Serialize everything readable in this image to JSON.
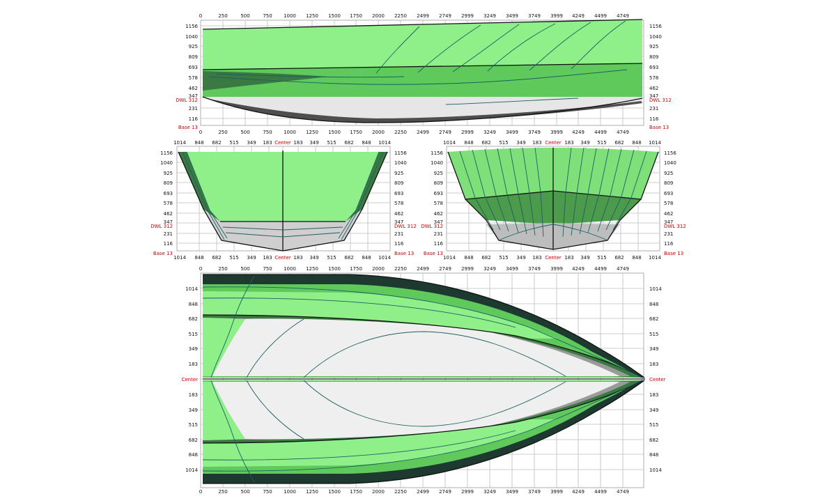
{
  "colors": {
    "hull_light_green": "#8ff08a",
    "hull_mid_green": "#5fc95c",
    "hull_dark_green": "#3a7a42",
    "hull_darkest": "#1e3a30",
    "bottom_light_gray": "#ececec",
    "bottom_mid_gray": "#b4b4b4",
    "bottom_dark_gray": "#6e6e6e",
    "label_red": "#cc0000",
    "grid": "#bdbdbd"
  },
  "labels": {
    "dwl": "DWL 312",
    "base": "Base 13",
    "center": "Center"
  },
  "profile_view": {
    "x_ticks": [
      "0",
      "250",
      "500",
      "750",
      "1000",
      "1250",
      "1500",
      "1750",
      "2000",
      "2250",
      "2499",
      "2749",
      "2999",
      "3249",
      "3499",
      "3749",
      "3999",
      "4249",
      "4499",
      "4749"
    ],
    "y_ticks": [
      "1156",
      "1040",
      "925",
      "809",
      "693",
      "578",
      "462",
      "347",
      "231",
      "116"
    ]
  },
  "body_view_left": {
    "x_ticks": [
      "1014",
      "848",
      "682",
      "515",
      "349",
      "183",
      "Center",
      "183",
      "349",
      "515",
      "682",
      "848",
      "1014"
    ],
    "y_ticks": [
      "1156",
      "1040",
      "925",
      "809",
      "693",
      "578",
      "462",
      "347",
      "231",
      "116"
    ]
  },
  "body_view_right": {
    "x_ticks": [
      "1014",
      "848",
      "682",
      "515",
      "349",
      "183",
      "Center",
      "183",
      "349",
      "515",
      "682",
      "848",
      "1014"
    ],
    "y_ticks": [
      "1156",
      "1040",
      "925",
      "809",
      "693",
      "578",
      "462",
      "347",
      "231",
      "116"
    ]
  },
  "plan_view": {
    "x_ticks": [
      "0",
      "250",
      "500",
      "750",
      "1000",
      "1250",
      "1500",
      "1750",
      "2000",
      "2250",
      "2499",
      "2749",
      "2999",
      "3249",
      "3499",
      "3749",
      "3999",
      "4249",
      "4499",
      "4749"
    ],
    "y_ticks": [
      "1014",
      "848",
      "682",
      "515",
      "349",
      "183",
      "Center",
      "183",
      "349",
      "515",
      "682",
      "848",
      "1014"
    ]
  }
}
